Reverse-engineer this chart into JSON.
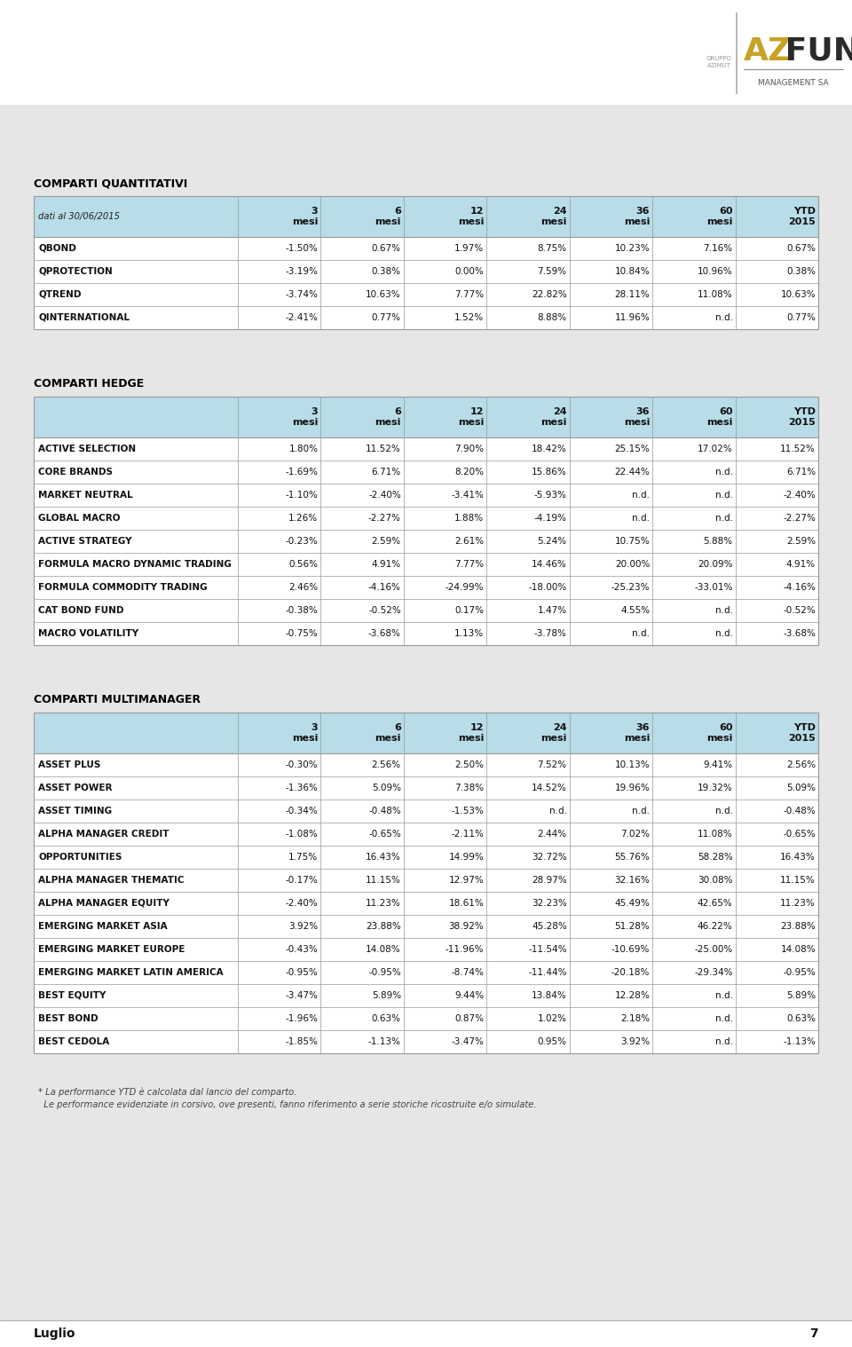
{
  "bg_color": "#e6e6e6",
  "white": "#ffffff",
  "header_bg": "#b8dce8",
  "border_color": "#999999",
  "text_color": "#1a1a1a",
  "title_color": "#000000",
  "col_header": [
    "3\nmesi",
    "6\nmesi",
    "12\nmesi",
    "24\nmesi",
    "36\nmesi",
    "60\nmesi",
    "YTD\n2015"
  ],
  "quant_title": "COMPARTI QUANTITATIVI",
  "quant_subtitle": "dati al 30/06/2015",
  "quant_rows": [
    [
      "QBOND",
      "-1.50%",
      "0.67%",
      "1.97%",
      "8.75%",
      "10.23%",
      "7.16%",
      "0.67%"
    ],
    [
      "QPROTECTION",
      "-3.19%",
      "0.38%",
      "0.00%",
      "7.59%",
      "10.84%",
      "10.96%",
      "0.38%"
    ],
    [
      "QTREND",
      "-3.74%",
      "10.63%",
      "7.77%",
      "22.82%",
      "28.11%",
      "11.08%",
      "10.63%"
    ],
    [
      "QINTERNATIONAL",
      "-2.41%",
      "0.77%",
      "1.52%",
      "8.88%",
      "11.96%",
      "n.d.",
      "0.77%"
    ]
  ],
  "hedge_title": "COMPARTI HEDGE",
  "hedge_rows": [
    [
      "ACTIVE SELECTION",
      "1.80%",
      "11.52%",
      "7.90%",
      "18.42%",
      "25.15%",
      "17.02%",
      "11.52%"
    ],
    [
      "CORE BRANDS",
      "-1.69%",
      "6.71%",
      "8.20%",
      "15.86%",
      "22.44%",
      "n.d.",
      "6.71%"
    ],
    [
      "MARKET NEUTRAL",
      "-1.10%",
      "-2.40%",
      "-3.41%",
      "-5.93%",
      "n.d.",
      "n.d.",
      "-2.40%"
    ],
    [
      "GLOBAL MACRO",
      "1.26%",
      "-2.27%",
      "1.88%",
      "-4.19%",
      "n.d.",
      "n.d.",
      "-2.27%"
    ],
    [
      "ACTIVE STRATEGY",
      "-0.23%",
      "2.59%",
      "2.61%",
      "5.24%",
      "10.75%",
      "5.88%",
      "2.59%"
    ],
    [
      "FORMULA MACRO DYNAMIC TRADING",
      "0.56%",
      "4.91%",
      "7.77%",
      "14.46%",
      "20.00%",
      "20.09%",
      "4.91%"
    ],
    [
      "FORMULA COMMODITY TRADING",
      "2.46%",
      "-4.16%",
      "-24.99%",
      "-18.00%",
      "-25.23%",
      "-33.01%",
      "-4.16%"
    ],
    [
      "CAT BOND FUND",
      "-0.38%",
      "-0.52%",
      "0.17%",
      "1.47%",
      "4.55%",
      "n.d.",
      "-0.52%"
    ],
    [
      "MACRO VOLATILITY",
      "-0.75%",
      "-3.68%",
      "1.13%",
      "-3.78%",
      "n.d.",
      "n.d.",
      "-3.68%"
    ]
  ],
  "multi_title": "COMPARTI MULTIMANAGER",
  "multi_rows": [
    [
      "ASSET PLUS",
      "-0.30%",
      "2.56%",
      "2.50%",
      "7.52%",
      "10.13%",
      "9.41%",
      "2.56%"
    ],
    [
      "ASSET POWER",
      "-1.36%",
      "5.09%",
      "7.38%",
      "14.52%",
      "19.96%",
      "19.32%",
      "5.09%"
    ],
    [
      "ASSET TIMING",
      "-0.34%",
      "-0.48%",
      "-1.53%",
      "n.d.",
      "n.d.",
      "n.d.",
      "-0.48%"
    ],
    [
      "ALPHA MANAGER CREDIT",
      "-1.08%",
      "-0.65%",
      "-2.11%",
      "2.44%",
      "7.02%",
      "11.08%",
      "-0.65%"
    ],
    [
      "OPPORTUNITIES",
      "1.75%",
      "16.43%",
      "14.99%",
      "32.72%",
      "55.76%",
      "58.28%",
      "16.43%"
    ],
    [
      "ALPHA MANAGER THEMATIC",
      "-0.17%",
      "11.15%",
      "12.97%",
      "28.97%",
      "32.16%",
      "30.08%",
      "11.15%"
    ],
    [
      "ALPHA MANAGER EQUITY",
      "-2.40%",
      "11.23%",
      "18.61%",
      "32.23%",
      "45.49%",
      "42.65%",
      "11.23%"
    ],
    [
      "EMERGING MARKET ASIA",
      "3.92%",
      "23.88%",
      "38.92%",
      "45.28%",
      "51.28%",
      "46.22%",
      "23.88%"
    ],
    [
      "EMERGING MARKET EUROPE",
      "-0.43%",
      "14.08%",
      "-11.96%",
      "-11.54%",
      "-10.69%",
      "-25.00%",
      "14.08%"
    ],
    [
      "EMERGING MARKET LATIN AMERICA",
      "-0.95%",
      "-0.95%",
      "-8.74%",
      "-11.44%",
      "-20.18%",
      "-29.34%",
      "-0.95%"
    ],
    [
      "BEST EQUITY",
      "-3.47%",
      "5.89%",
      "9.44%",
      "13.84%",
      "12.28%",
      "n.d.",
      "5.89%"
    ],
    [
      "BEST BOND",
      "-1.96%",
      "0.63%",
      "0.87%",
      "1.02%",
      "2.18%",
      "n.d.",
      "0.63%"
    ],
    [
      "BEST CEDOLA",
      "-1.85%",
      "-1.13%",
      "-3.47%",
      "0.95%",
      "3.92%",
      "n.d.",
      "-1.13%"
    ]
  ],
  "footnote1": "* La performance YTD è calcolata dal lancio del comparto.",
  "footnote2": "  Le performance evidenziate in corsivo, ove presenti, fanno riferimento a serie storiche ricostruite e/o simulate.",
  "page_num": "7",
  "month_label": "Luglio",
  "logo_az": "AZ",
  "logo_fund": " FUND",
  "logo_mgmt": "MANAGEMENT SA"
}
